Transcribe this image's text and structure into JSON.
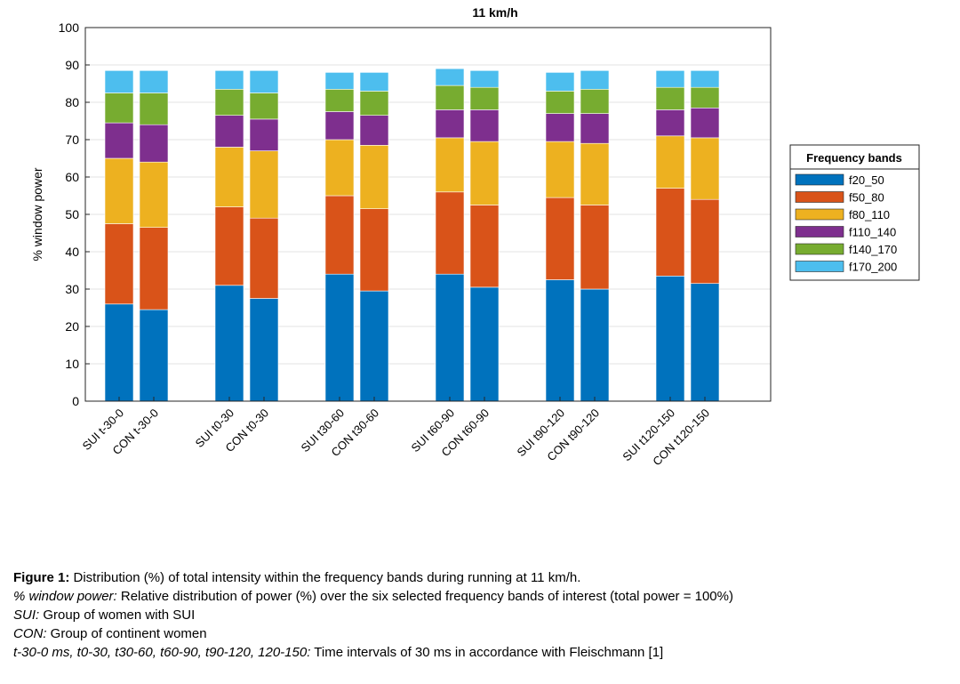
{
  "chart_data": {
    "type": "bar",
    "stacked": true,
    "title": "11 km/h",
    "xlabel": "",
    "ylabel": "% window power",
    "ylim": [
      0,
      100
    ],
    "yticks": [
      0,
      10,
      20,
      30,
      40,
      50,
      60,
      70,
      80,
      90,
      100
    ],
    "grid": true,
    "legend_title": "Frequency bands",
    "legend_position": "right",
    "categories": [
      "SUI t-30-0",
      "CON t-30-0",
      "SUI t0-30",
      "CON t0-30",
      "SUI t30-60",
      "CON t30-60",
      "SUI t60-90",
      "CON t60-90",
      "SUI t90-120",
      "CON t90-120",
      "SUI t120-150",
      "CON t120-150"
    ],
    "series": [
      {
        "name": "f20_50",
        "color": "#0072bd",
        "values": [
          26,
          24.5,
          31,
          27.5,
          34,
          29.5,
          34,
          30.5,
          32.5,
          30,
          33.5,
          31.5
        ]
      },
      {
        "name": "f50_80",
        "color": "#d95319",
        "values": [
          21.5,
          22,
          21,
          21.5,
          21,
          22,
          22,
          22,
          22,
          22.5,
          23.5,
          22.5
        ]
      },
      {
        "name": "f80_110",
        "color": "#edb120",
        "values": [
          17.5,
          17.5,
          16,
          18,
          15,
          17,
          14.5,
          17,
          15,
          16.5,
          14,
          16.5
        ]
      },
      {
        "name": "f110_140",
        "color": "#7e2f8e",
        "values": [
          9.5,
          10,
          8.5,
          8.5,
          7.5,
          8,
          7.5,
          8.5,
          7.5,
          8,
          7,
          8
        ]
      },
      {
        "name": "f140_170",
        "color": "#77ac30",
        "values": [
          8,
          8.5,
          7,
          7,
          6,
          6.5,
          6.5,
          6,
          6,
          6.5,
          6,
          5.5
        ]
      },
      {
        "name": "f170_200",
        "color": "#4dbeee",
        "values": [
          6,
          6,
          5,
          6,
          4.5,
          5,
          4.5,
          4.5,
          5,
          5,
          4.5,
          4.5
        ]
      }
    ]
  },
  "caption": {
    "figure_label": "Figure 1:",
    "figure_text": " Distribution (%) of total intensity within the frequency bands during running at 11 km/h.",
    "window_power_label": "% window power:",
    "window_power_text": " Relative distribution of power (%) over the six selected frequency bands of interest (total power = 100%)",
    "sui_label": "SUI:",
    "sui_text": " Group of women with SUI",
    "con_label": "CON:",
    "con_text": " Group of continent women",
    "intervals_label": "t-30-0 ms, t0-30, t30-60, t60-90, t90-120, 120-150:",
    "intervals_text": " Time intervals of 30 ms in accordance with Fleischmann [1]"
  }
}
